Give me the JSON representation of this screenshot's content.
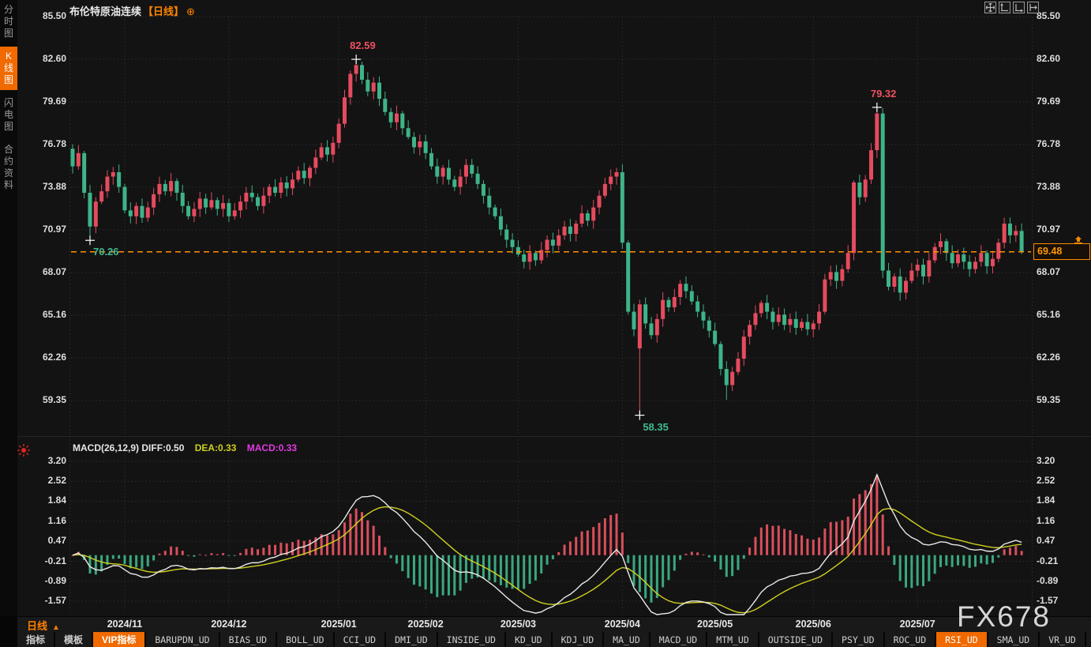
{
  "header": {
    "symbol": "布伦特原油连续",
    "interval_tag": "【日线】",
    "plus_glyph": "⊕",
    "tool_icons": [
      "move-tool-icon",
      "axis-scale-left-icon",
      "axis-scale-right-icon",
      "axis-shift-icon"
    ]
  },
  "sidebar": {
    "items": [
      {
        "label": "分时图",
        "name": "tab-time-chart",
        "active": false
      },
      {
        "label": "K线图",
        "name": "tab-kline-chart",
        "active": true
      },
      {
        "label": "闪电图",
        "name": "tab-lightning-chart",
        "active": false
      },
      {
        "label": "合约资料",
        "name": "tab-contract-info",
        "active": false
      }
    ]
  },
  "macd_header": {
    "params_and_diff": "MACD(26,12,9) DIFF:0.50",
    "dea": "DEA:0.33",
    "macd": "MACD:0.33"
  },
  "xaxis": {
    "interval_label": "日线",
    "interval_arrow": "▲"
  },
  "toolbar": {
    "items": [
      {
        "label": "指标",
        "active": false
      },
      {
        "label": "模板",
        "active": false
      },
      {
        "label": "VIP指标",
        "active": true
      },
      {
        "label": "BARUPDN_UD",
        "active": false
      },
      {
        "label": "BIAS_UD",
        "active": false
      },
      {
        "label": "BOLL_UD",
        "active": false
      },
      {
        "label": "CCI_UD",
        "active": false
      },
      {
        "label": "DMI_UD",
        "active": false
      },
      {
        "label": "INSIDE_UD",
        "active": false
      },
      {
        "label": "KD_UD",
        "active": false
      },
      {
        "label": "KDJ_UD",
        "active": false
      },
      {
        "label": "MA_UD",
        "active": false
      },
      {
        "label": "MACD_UD",
        "active": false
      },
      {
        "label": "MTM_UD",
        "active": false
      },
      {
        "label": "OUTSIDE_UD",
        "active": false
      },
      {
        "label": "PSY_UD",
        "active": false
      },
      {
        "label": "ROC_UD",
        "active": false
      },
      {
        "label": "RSI_UD",
        "active": true
      },
      {
        "label": "SMA_UD",
        "active": false
      },
      {
        "label": "VR_UD",
        "active": false
      },
      {
        "label": ">>",
        "active": false
      }
    ]
  },
  "watermark": "FX678",
  "colors": {
    "up": "#e54b5e",
    "down": "#3eb488",
    "accent_orange": "#ff7e00",
    "diff_line": "#e8e8e8",
    "dea_line": "#cfd020",
    "macd_label": "#e23ae2",
    "grid": "#2d2d2d",
    "hist_pos": "#d94f5c",
    "hist_neg": "#3aa87e",
    "annotation_high": "#ef5060",
    "annotation_low": "#3fbb8f"
  },
  "chart_data": {
    "type": "candlestick",
    "symbol": "布伦特原油连续",
    "interval": "日线",
    "price_axis": {
      "labels": [
        "85.50",
        "82.60",
        "79.69",
        "76.78",
        "73.88",
        "70.97",
        "68.07",
        "65.16",
        "62.26",
        "59.35"
      ],
      "values": [
        85.5,
        82.6,
        79.69,
        76.78,
        73.88,
        70.97,
        68.07,
        65.16,
        62.26,
        59.35
      ]
    },
    "macd_axis": {
      "labels": [
        "3.20",
        "2.52",
        "1.84",
        "1.16",
        "0.47",
        "-0.21",
        "-0.89",
        "-1.57"
      ],
      "values": [
        3.2,
        2.52,
        1.84,
        1.16,
        0.47,
        -0.21,
        -0.89,
        -1.57
      ]
    },
    "month_ticks": [
      {
        "label": "2024/11",
        "index": 9
      },
      {
        "label": "2024/12",
        "index": 27
      },
      {
        "label": "2025/01",
        "index": 46
      },
      {
        "label": "2025/02",
        "index": 61
      },
      {
        "label": "2025/03",
        "index": 77
      },
      {
        "label": "2025/04",
        "index": 95
      },
      {
        "label": "2025/05",
        "index": 111
      },
      {
        "label": "2025/06",
        "index": 128
      },
      {
        "label": "2025/07",
        "index": 146
      }
    ],
    "first_open": 76.5,
    "closes": [
      75.3,
      76.2,
      73.5,
      71.2,
      72.9,
      73.6,
      74.6,
      74.9,
      73.9,
      72.3,
      71.9,
      72.6,
      71.8,
      72.5,
      73.4,
      74.1,
      73.6,
      74.3,
      73.5,
      72.6,
      71.9,
      72.4,
      73.1,
      72.5,
      73.0,
      72.4,
      72.8,
      71.9,
      72.3,
      72.9,
      73.5,
      73.2,
      72.6,
      73.3,
      73.9,
      73.5,
      74.2,
      73.8,
      74.4,
      75.0,
      74.5,
      75.2,
      75.9,
      76.6,
      76.1,
      76.9,
      78.2,
      80.0,
      81.6,
      82.2,
      81.2,
      80.4,
      81.0,
      79.9,
      79.0,
      78.3,
      78.9,
      77.9,
      77.3,
      76.6,
      77.0,
      76.2,
      75.3,
      74.6,
      75.2,
      74.4,
      73.9,
      74.6,
      75.4,
      74.8,
      74.1,
      73.3,
      72.5,
      71.9,
      71.0,
      70.3,
      69.8,
      69.3,
      68.8,
      69.4,
      68.9,
      69.6,
      70.3,
      69.9,
      70.6,
      71.2,
      70.7,
      71.4,
      72.1,
      71.6,
      72.5,
      73.3,
      74.1,
      74.6,
      74.9,
      70.1,
      65.4,
      64.2,
      65.9,
      64.6,
      63.8,
      64.9,
      66.2,
      65.7,
      66.4,
      67.3,
      66.8,
      66.1,
      65.4,
      64.8,
      64.1,
      63.2,
      61.5,
      60.4,
      61.3,
      62.2,
      63.7,
      64.5,
      65.3,
      66.0,
      65.4,
      64.7,
      65.2,
      64.5,
      64.9,
      64.3,
      64.7,
      64.2,
      64.6,
      65.4,
      67.6,
      68.1,
      67.5,
      68.3,
      69.4,
      74.2,
      73.2,
      74.4,
      76.4,
      78.9,
      68.2,
      67.1,
      67.8,
      66.7,
      67.5,
      68.2,
      68.6,
      67.8,
      68.9,
      69.8,
      70.2,
      69.4,
      68.7,
      69.3,
      68.8,
      68.3,
      68.8,
      69.4,
      68.5,
      69.0,
      70.1,
      71.4,
      70.6,
      70.9,
      69.48
    ],
    "overrides": {
      "3": {
        "low": 70.26
      },
      "49": {
        "high": 82.59
      },
      "98": {
        "open": 62.9,
        "low": 58.35
      },
      "113": {
        "low": 59.4
      },
      "139": {
        "high": 79.32
      },
      "161": {
        "high": 71.8
      }
    },
    "annotations": [
      {
        "index": 3,
        "text": "70.26",
        "side": "low"
      },
      {
        "index": 49,
        "text": "82.59",
        "side": "high"
      },
      {
        "index": 98,
        "text": "58.35",
        "side": "low"
      },
      {
        "index": 139,
        "text": "79.32",
        "side": "high"
      }
    ],
    "price_line": {
      "value": 69.48,
      "label": "69.48"
    },
    "macd": {
      "fast": 12,
      "slow": 26,
      "signal": 9,
      "last_diff": 0.5,
      "last_dea": 0.33,
      "last_macd": 0.33
    }
  }
}
